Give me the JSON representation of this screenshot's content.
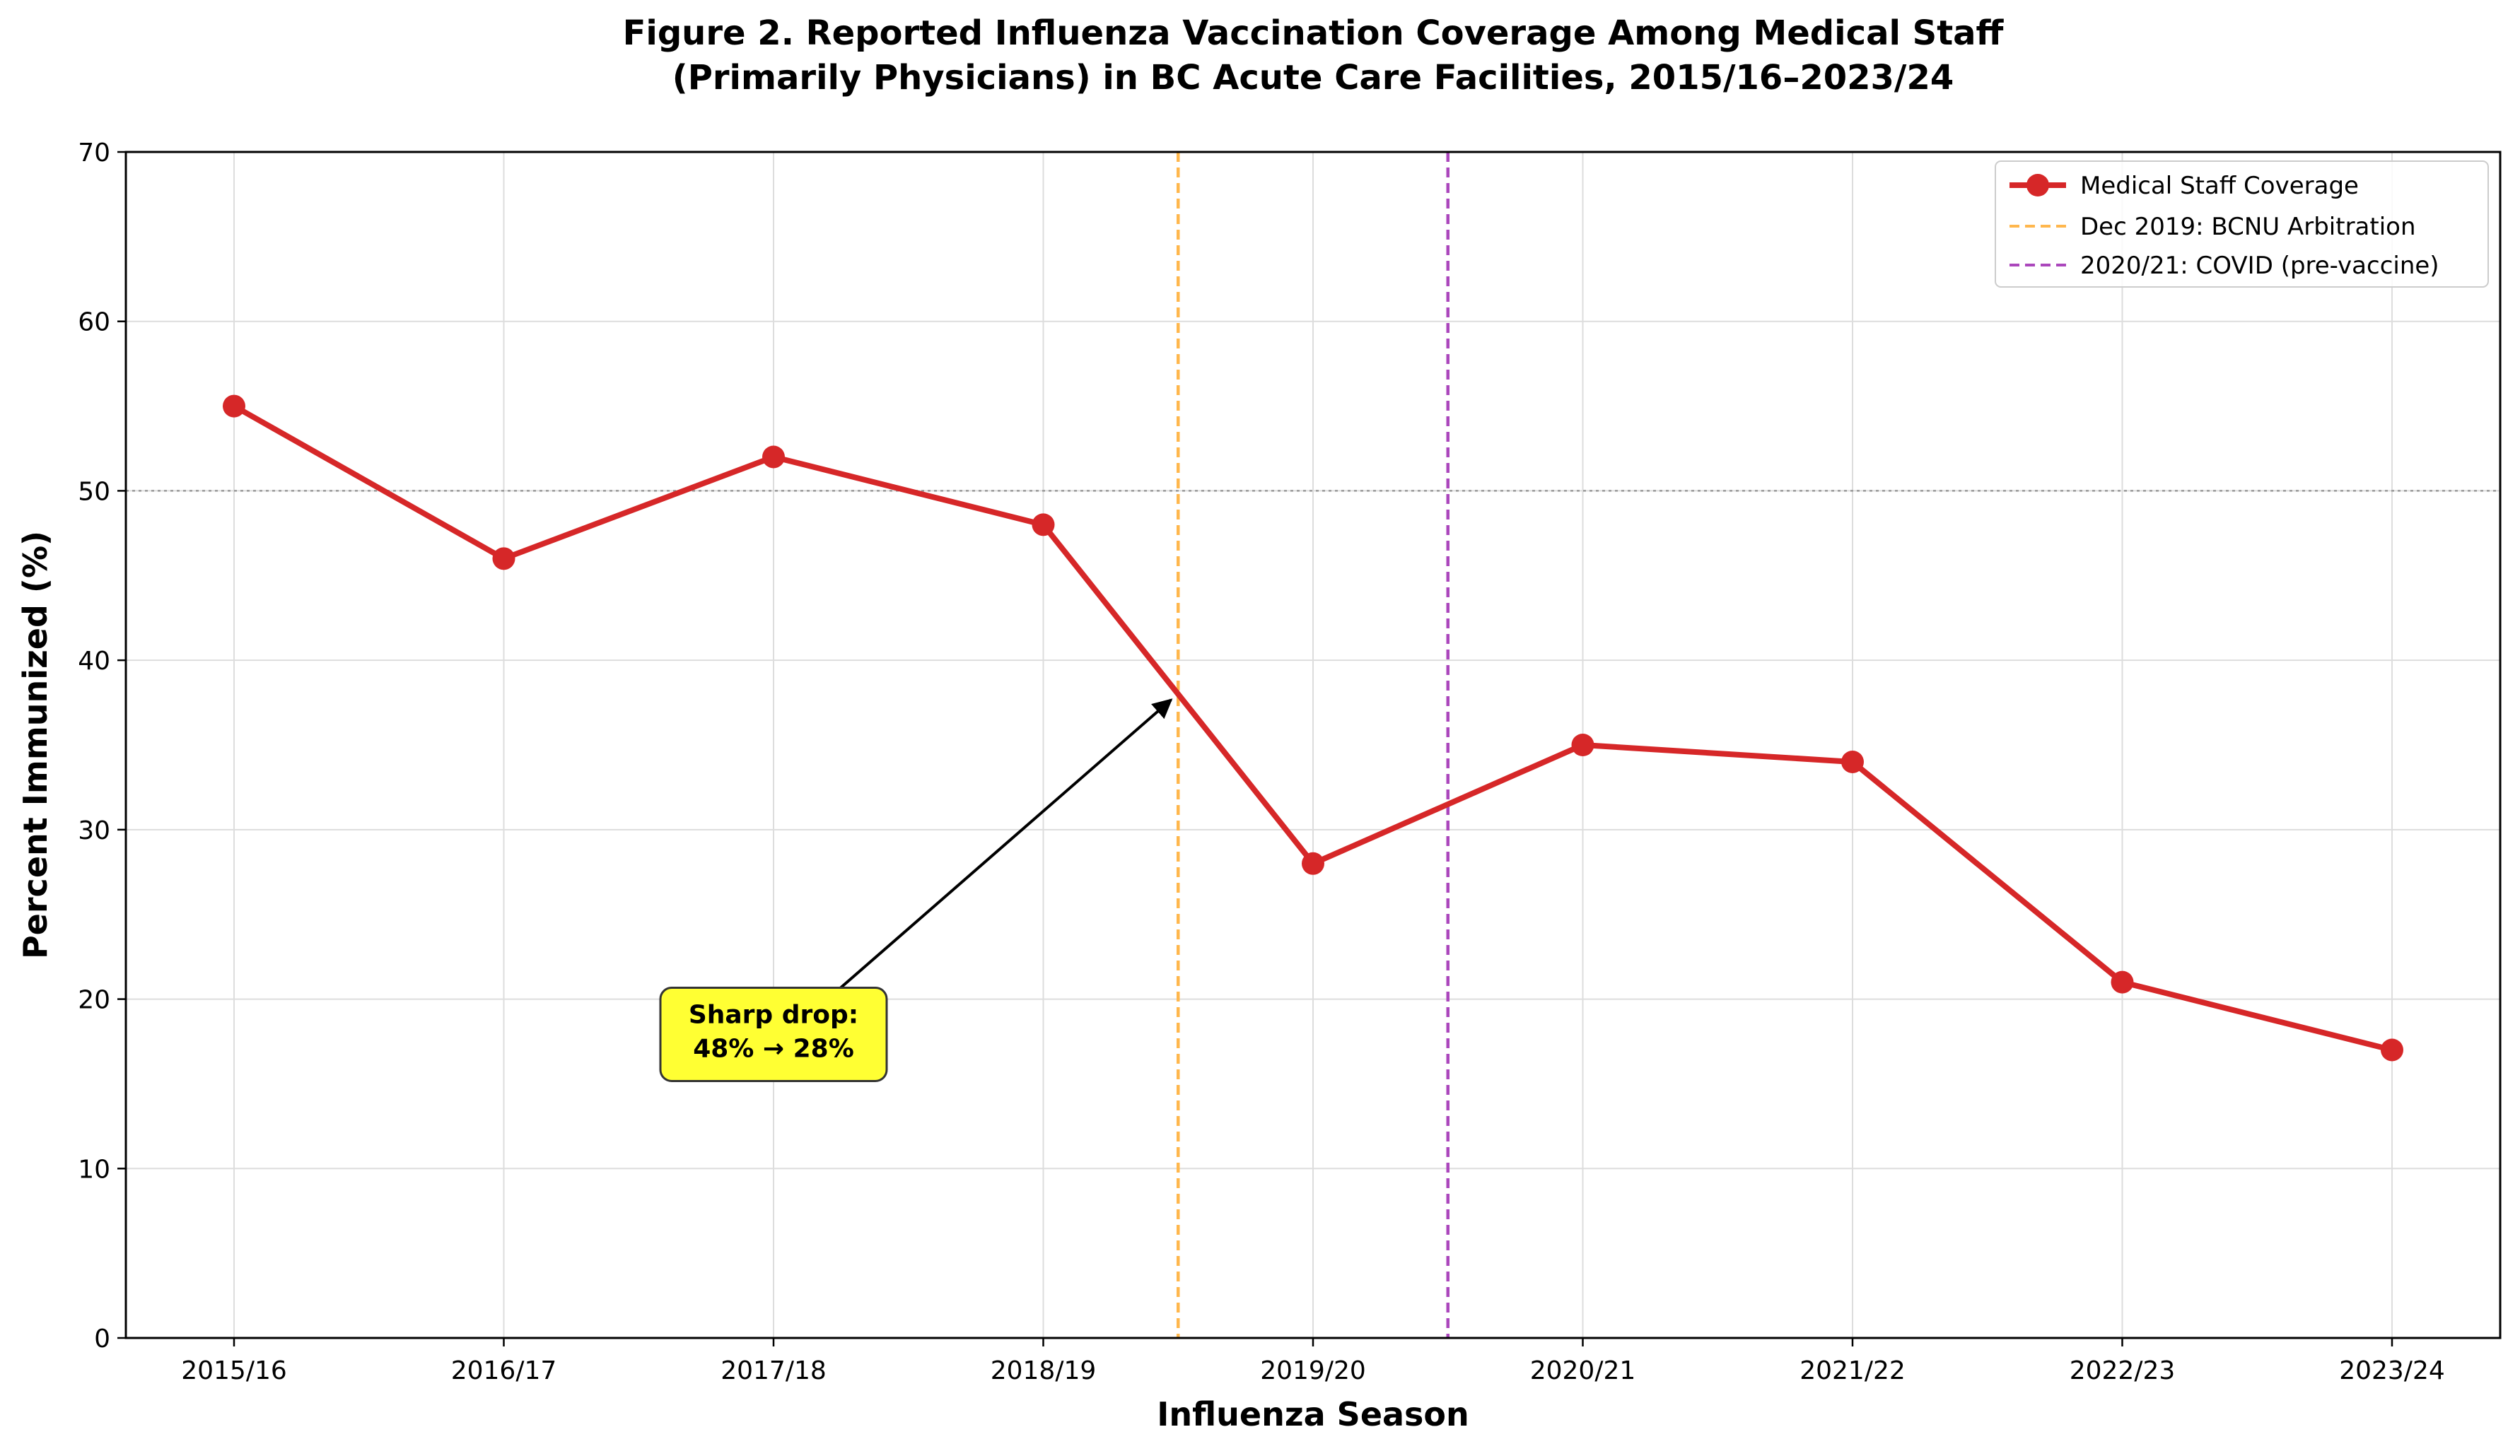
{
  "chart_data": {
    "type": "line",
    "title_lines": [
      "Figure 2. Reported Influenza Vaccination Coverage Among Medical Staff",
      "(Primarily Physicians) in BC Acute Care Facilities, 2015/16–2023/24"
    ],
    "xlabel": "Influenza Season",
    "ylabel": "Percent Immunized (%)",
    "categories": [
      "2015/16",
      "2016/17",
      "2017/18",
      "2018/19",
      "2019/20",
      "2020/21",
      "2021/22",
      "2022/23",
      "2023/24"
    ],
    "series": [
      {
        "name": "Medical Staff Coverage",
        "color": "#d62728",
        "values": [
          55,
          46,
          52,
          48,
          28,
          35,
          34,
          21,
          17
        ]
      }
    ],
    "ylim": [
      0,
      70
    ],
    "yticks": [
      0,
      10,
      20,
      30,
      40,
      50,
      60,
      70
    ],
    "grid": true,
    "reference_line": {
      "y": 50,
      "style": "dotted",
      "color": "#999999"
    },
    "vertical_lines": [
      {
        "x": 3.5,
        "label": "Dec 2019: BCNU Arbitration",
        "color": "#ffb74d"
      },
      {
        "x": 4.5,
        "label": "2020/21: COVID (pre-vaccine)",
        "color": "#ab47bc"
      }
    ],
    "annotation": {
      "text_lines": [
        "Sharp drop:",
        "48% → 28%"
      ],
      "text_at": {
        "x": 2.0,
        "y": 17
      },
      "arrow_to": {
        "x": 3.5,
        "y": 38
      },
      "box_color": "#ffff33"
    },
    "legend_position": "top-right"
  }
}
